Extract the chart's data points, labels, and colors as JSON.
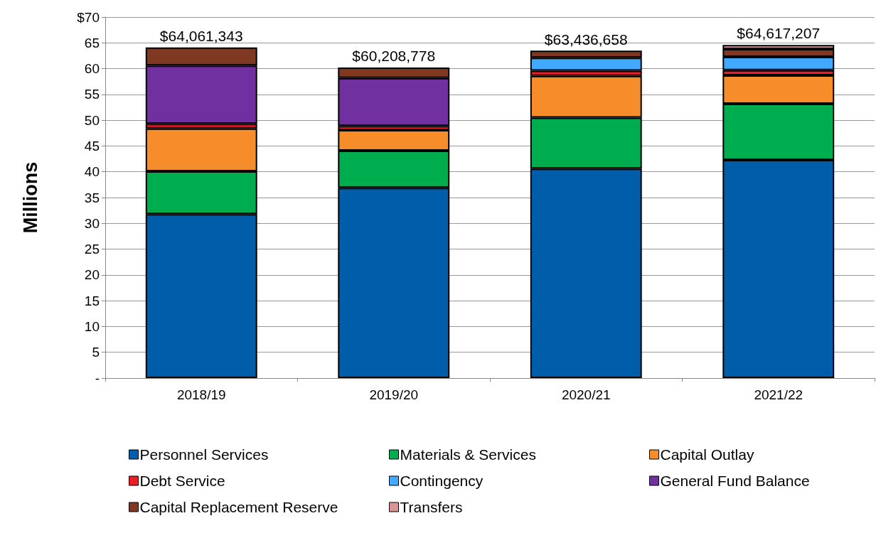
{
  "chart_data": {
    "type": "bar",
    "stacked": true,
    "ylabel": "Millions",
    "categories": [
      "2018/19",
      "2019/20",
      "2020/21",
      "2021/22"
    ],
    "series": [
      {
        "name": "Personnel Services",
        "color": "#005daa",
        "values": [
          31.8,
          36.9,
          40.6,
          42.3
        ]
      },
      {
        "name": "Materials & Services",
        "color": "#00ad4e",
        "values": [
          8.3,
          7.2,
          9.9,
          10.9
        ]
      },
      {
        "name": "Capital Outlay",
        "color": "#f68c2a",
        "values": [
          8.3,
          4.0,
          8.1,
          5.5
        ]
      },
      {
        "name": "Debt Service",
        "color": "#ee1c25",
        "values": [
          0.9,
          0.8,
          1.0,
          1.0
        ]
      },
      {
        "name": "Contingency",
        "color": "#43a9ff",
        "values": [
          null,
          null,
          2.5,
          2.6
        ]
      },
      {
        "name": "General Fund Balance",
        "color": "#7030a0",
        "values": [
          11.3,
          9.3,
          null,
          null
        ]
      },
      {
        "name": "Capital Replacement Reserve",
        "color": "#7f3822",
        "values": [
          3.5,
          2.0,
          1.4,
          1.5
        ]
      },
      {
        "name": "Transfers",
        "color": "#d99694",
        "values": [
          null,
          null,
          null,
          0.8
        ]
      }
    ],
    "annotations": [
      {
        "text": "$64,061,343",
        "x": "2018/19",
        "y": 64.1
      },
      {
        "text": "$60,208,778",
        "x": "2019/20",
        "y": 60.2
      },
      {
        "text": "$63,436,658",
        "x": "2020/21",
        "y": 63.4
      },
      {
        "text": "$64,617,207",
        "x": "2021/22",
        "y": 64.6
      }
    ],
    "ylim": [
      0,
      70
    ],
    "yticks": [
      {
        "value": 0,
        "label": "-"
      },
      5,
      10,
      15,
      20,
      25,
      30,
      35,
      40,
      45,
      50,
      55,
      60,
      65,
      {
        "value": 70,
        "label": "$70"
      }
    ],
    "grid": "y",
    "legend": "bottom"
  }
}
